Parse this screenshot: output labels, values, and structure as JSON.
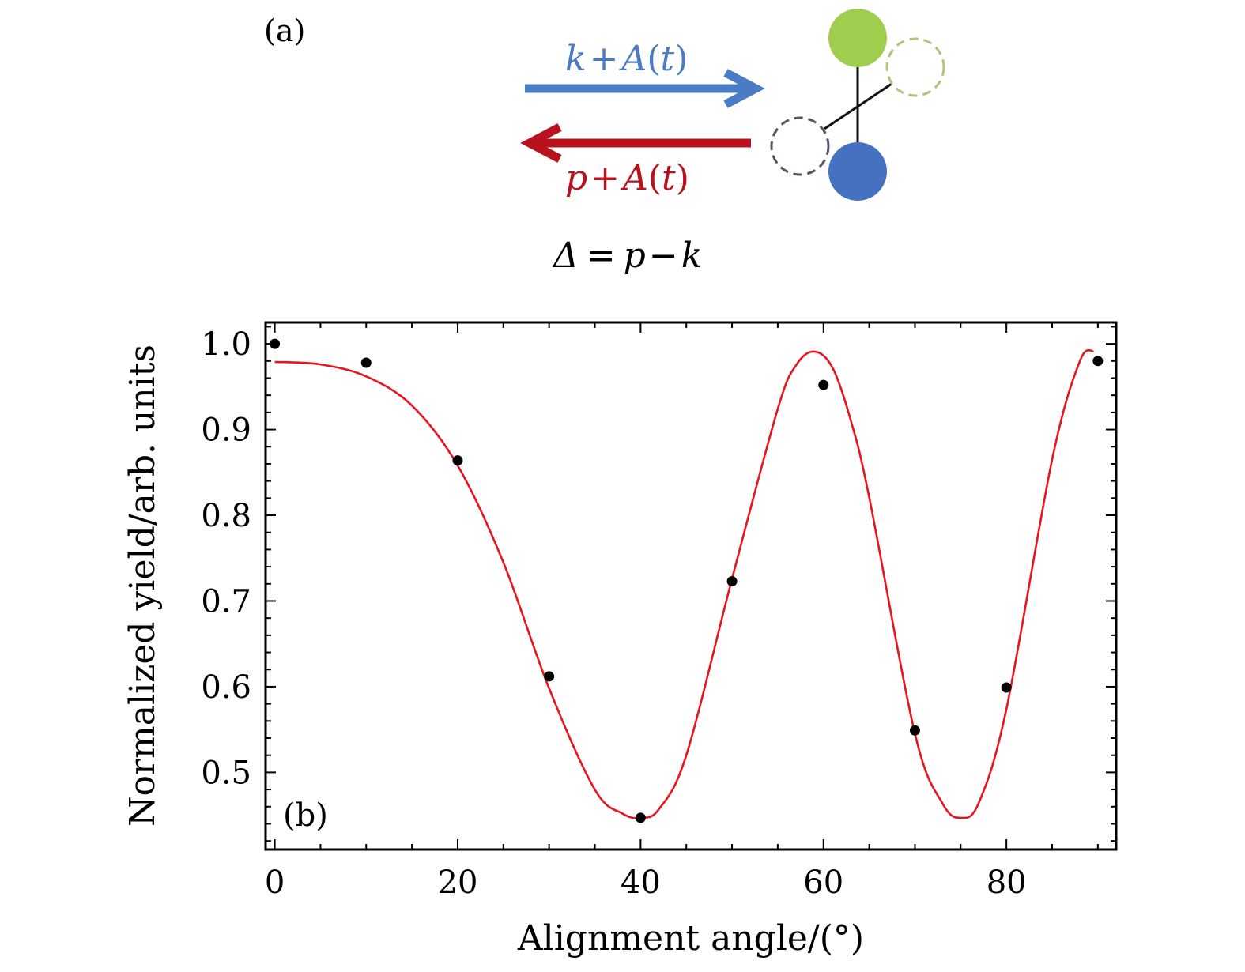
{
  "panel_a": {
    "label": "(a)",
    "incoming": {
      "k": "k",
      "plus": "+",
      "A": "A",
      "open": "(",
      "t": "t",
      "close": ")",
      "color": "#4a7cc4"
    },
    "outgoing": {
      "p": "p",
      "plus": "+",
      "A": "A",
      "open": "(",
      "t": "t",
      "close": ")",
      "color": "#b8121e"
    },
    "delta": {
      "symbol": "Δ",
      "eq": "=",
      "p": "p",
      "minus": "−",
      "k": "k"
    },
    "atom_top_color": "#9fce4e",
    "atom_bottom_color": "#4670c0",
    "ghost_top_color": "#b5c27a",
    "ghost_bottom_color": "#555566"
  },
  "chart_data": {
    "type": "scatter",
    "panel_label": "(b)",
    "xlabel": "Alignment angle/(°)",
    "ylabel": "Normalized yield/arb. units",
    "xlim": [
      -1,
      92
    ],
    "ylim": [
      0.41,
      1.025
    ],
    "xticks": [
      0,
      20,
      40,
      60,
      80
    ],
    "xtick_labels": [
      "0",
      "20",
      "40",
      "60",
      "80"
    ],
    "yticks": [
      0.5,
      0.6,
      0.7,
      0.8,
      0.9,
      1.0
    ],
    "ytick_labels": [
      "0.5",
      "0.6",
      "0.7",
      "0.8",
      "0.9",
      "1.0"
    ],
    "grid": false,
    "series": [
      {
        "kind": "points",
        "color": "#000000",
        "x": [
          0,
          10,
          20,
          30,
          40,
          50,
          60,
          70,
          80,
          90
        ],
        "y": [
          1.0,
          0.978,
          0.864,
          0.612,
          0.447,
          0.723,
          0.952,
          0.549,
          0.599,
          0.98
        ]
      },
      {
        "kind": "fit",
        "color": "#e8141e",
        "x": [
          0,
          5,
          10,
          15,
          20,
          25,
          30,
          35,
          38,
          40,
          42,
          45,
          50,
          55,
          57,
          59,
          61,
          63,
          65,
          70,
          73,
          75,
          77,
          80,
          85,
          88,
          89.5
        ],
        "y": [
          0.979,
          0.976,
          0.962,
          0.928,
          0.858,
          0.745,
          0.598,
          0.48,
          0.452,
          0.447,
          0.457,
          0.52,
          0.726,
          0.924,
          0.975,
          0.991,
          0.972,
          0.91,
          0.821,
          0.545,
          0.464,
          0.447,
          0.465,
          0.574,
          0.865,
          0.979,
          0.992
        ]
      }
    ]
  }
}
